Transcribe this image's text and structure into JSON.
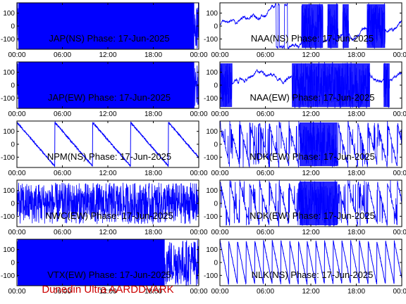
{
  "footer": "Dunedin Ultra AARDDVARK",
  "colors": {
    "trace": "#0000ff",
    "frame": "#000000",
    "footer": "#cc0000"
  },
  "chart_data": [
    {
      "type": "line",
      "title": "JAP(NS) Phase: 17-Jun-2025",
      "ylim": [
        -180,
        180
      ],
      "xlim": [
        0,
        24
      ],
      "yticks": [
        {
          "v": 100,
          "label": "100"
        },
        {
          "v": 0,
          "label": "0"
        },
        {
          "v": -100,
          "label": "-100"
        }
      ],
      "xticks": [
        {
          "v": 0,
          "label": "00:00"
        },
        {
          "v": 6,
          "label": "06:00"
        },
        {
          "v": 12,
          "label": "12:00"
        },
        {
          "v": 18,
          "label": "18:00"
        },
        {
          "v": 24,
          "label": "00:00"
        }
      ],
      "pattern": "dense",
      "bands": [
        [
          0.2,
          23.4
        ]
      ],
      "sparse_segments": [
        [
          23.4,
          24
        ]
      ]
    },
    {
      "type": "line",
      "title": "NAA(NS) Phase: 17-Jun-2025",
      "ylim": [
        -180,
        180
      ],
      "xlim": [
        0,
        24
      ],
      "yticks": [
        {
          "v": 100,
          "label": "100"
        },
        {
          "v": 0,
          "label": "0"
        },
        {
          "v": -100,
          "label": "-100"
        }
      ],
      "xticks": [
        {
          "v": 0,
          "label": "00:00"
        },
        {
          "v": 6,
          "label": "06:00"
        },
        {
          "v": 12,
          "label": "12:00"
        },
        {
          "v": 18,
          "label": "18:00"
        },
        {
          "v": 24,
          "label": "00:00"
        }
      ],
      "pattern": "drift",
      "bands": [
        [
          10.8,
          13.6
        ],
        [
          14.2,
          15.6
        ],
        [
          16.2,
          17.0
        ],
        [
          19.4,
          21.8
        ]
      ]
    },
    {
      "type": "line",
      "title": "JAP(EW) Phase: 17-Jun-2025",
      "ylim": [
        -180,
        180
      ],
      "xlim": [
        0,
        24
      ],
      "yticks": [
        {
          "v": 100,
          "label": "100"
        },
        {
          "v": 0,
          "label": "0"
        },
        {
          "v": -100,
          "label": "-100"
        }
      ],
      "xticks": [
        {
          "v": 0,
          "label": "00:00"
        },
        {
          "v": 6,
          "label": "06:00"
        },
        {
          "v": 12,
          "label": "12:00"
        },
        {
          "v": 18,
          "label": "18:00"
        },
        {
          "v": 24,
          "label": "00:00"
        }
      ],
      "pattern": "dense",
      "bands": [
        [
          0.2,
          23.4
        ]
      ],
      "sparse_segments": [
        [
          23.4,
          24
        ]
      ]
    },
    {
      "type": "line",
      "title": "NAA(EW) Phase: 17-Jun-2025",
      "ylim": [
        -180,
        180
      ],
      "xlim": [
        0,
        24
      ],
      "yticks": [
        {
          "v": 100,
          "label": "100"
        },
        {
          "v": 0,
          "label": "0"
        },
        {
          "v": -100,
          "label": "-100"
        }
      ],
      "xticks": [
        {
          "v": 0,
          "label": "00:00"
        },
        {
          "v": 6,
          "label": "06:00"
        },
        {
          "v": 12,
          "label": "12:00"
        },
        {
          "v": 18,
          "label": "18:00"
        },
        {
          "v": 24,
          "label": "00:00"
        }
      ],
      "pattern": "drift",
      "bands": [
        [
          0,
          1.6
        ],
        [
          9.5,
          19.8
        ],
        [
          21.6,
          22.4
        ]
      ]
    },
    {
      "type": "line",
      "title": "NPM(NS) Phase: 17-Jun-2025",
      "ylim": [
        -180,
        180
      ],
      "xlim": [
        0,
        24
      ],
      "yticks": [
        {
          "v": 100,
          "label": "100"
        },
        {
          "v": 0,
          "label": "0"
        },
        {
          "v": -100,
          "label": "-100"
        }
      ],
      "xticks": [
        {
          "v": 0,
          "label": "00:00"
        },
        {
          "v": 6,
          "label": "06:00"
        },
        {
          "v": 12,
          "label": "12:00"
        },
        {
          "v": 18,
          "label": "18:00"
        },
        {
          "v": 24,
          "label": "00:00"
        }
      ],
      "pattern": "sawtooth",
      "period_h": 5.0,
      "bands": []
    },
    {
      "type": "line",
      "title": "NDK(EW) Phase: 17-Jun-2025",
      "ylim": [
        -180,
        180
      ],
      "xlim": [
        0,
        24
      ],
      "yticks": [
        {
          "v": 100,
          "label": "100"
        },
        {
          "v": 0,
          "label": "0"
        },
        {
          "v": -100,
          "label": "-100"
        }
      ],
      "xticks": [
        {
          "v": 0,
          "label": "00:00"
        },
        {
          "v": 6,
          "label": "06:00"
        },
        {
          "v": 12,
          "label": "12:00"
        },
        {
          "v": 18,
          "label": "18:00"
        },
        {
          "v": 24,
          "label": "00:00"
        }
      ],
      "pattern": "noisy-saw",
      "period_h": 1.3,
      "bands": [
        [
          10.5,
          15.5
        ]
      ]
    },
    {
      "type": "line",
      "title": "NWC(EW) Phase: 17-Jun-2025",
      "ylim": [
        -180,
        180
      ],
      "xlim": [
        0,
        24
      ],
      "yticks": [
        {
          "v": 100,
          "label": "100"
        },
        {
          "v": 0,
          "label": "0"
        },
        {
          "v": -100,
          "label": "-100"
        }
      ],
      "xticks": [
        {
          "v": 0,
          "label": "00:00"
        },
        {
          "v": 6,
          "label": "06:00"
        },
        {
          "v": 12,
          "label": "12:00"
        },
        {
          "v": 18,
          "label": "18:00"
        },
        {
          "v": 24,
          "label": "00:00"
        }
      ],
      "pattern": "noise",
      "bands": []
    },
    {
      "type": "line",
      "title": "NDK(EW) Phase: 17-Jun-2025",
      "ylim": [
        -180,
        180
      ],
      "xlim": [
        0,
        24
      ],
      "yticks": [
        {
          "v": 100,
          "label": "100"
        },
        {
          "v": 0,
          "label": "0"
        },
        {
          "v": -100,
          "label": "-100"
        }
      ],
      "xticks": [
        {
          "v": 0,
          "label": "00:00"
        },
        {
          "v": 6,
          "label": "06:00"
        },
        {
          "v": 12,
          "label": "12:00"
        },
        {
          "v": 18,
          "label": "18:00"
        },
        {
          "v": 24,
          "label": "00:00"
        }
      ],
      "pattern": "noisy-saw",
      "period_h": 1.3,
      "bands": [
        [
          10.5,
          15.5
        ]
      ]
    },
    {
      "type": "line",
      "title": "VTX(EW) Phase: 17-Jun-2025",
      "ylim": [
        -180,
        180
      ],
      "xlim": [
        0,
        24
      ],
      "yticks": [
        {
          "v": 100,
          "label": "100"
        },
        {
          "v": 0,
          "label": "0"
        },
        {
          "v": -100,
          "label": "-100"
        }
      ],
      "xticks": [
        {
          "v": 0,
          "label": "00:00"
        },
        {
          "v": 6,
          "label": "06:00"
        },
        {
          "v": 12,
          "label": "12:00"
        },
        {
          "v": 18,
          "label": "18:00"
        },
        {
          "v": 24,
          "label": "00:00"
        }
      ],
      "pattern": "dense",
      "bands": [
        [
          0.1,
          19.5
        ]
      ],
      "sparse_segments": [
        [
          19.5,
          24
        ]
      ]
    },
    {
      "type": "line",
      "title": "NLK(NS) Phase: 17-Jun-2025",
      "ylim": [
        -180,
        180
      ],
      "xlim": [
        0,
        24
      ],
      "yticks": [
        {
          "v": 100,
          "label": "100"
        },
        {
          "v": 0,
          "label": "0"
        },
        {
          "v": -100,
          "label": "-100"
        }
      ],
      "xticks": [
        {
          "v": 0,
          "label": "00:00"
        },
        {
          "v": 6,
          "label": "06:00"
        },
        {
          "v": 12,
          "label": "12:00"
        },
        {
          "v": 18,
          "label": "18:00"
        },
        {
          "v": 24,
          "label": "00:00"
        }
      ],
      "pattern": "sawtooth",
      "period_h": 1.15,
      "bands": []
    }
  ]
}
